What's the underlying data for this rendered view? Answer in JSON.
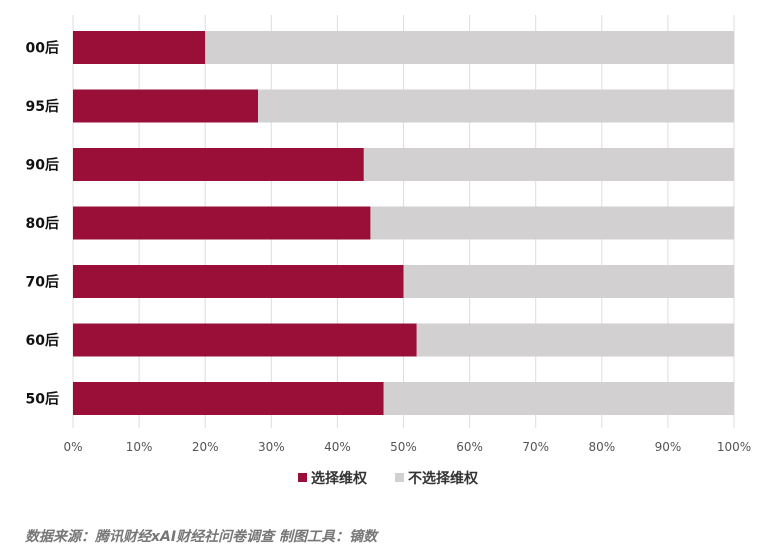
{
  "chart_data": {
    "type": "bar",
    "orientation": "horizontal",
    "stacked": true,
    "categories": [
      "00后",
      "95后",
      "90后",
      "80后",
      "70后",
      "60后",
      "50后"
    ],
    "series": [
      {
        "name": "选择维权",
        "values": [
          20,
          28,
          44,
          45,
          50,
          52,
          47
        ],
        "color": "#990f37"
      },
      {
        "name": "不选择维权",
        "values": [
          80,
          72,
          56,
          55,
          50,
          48,
          53
        ],
        "color": "#d2d0d1"
      }
    ],
    "xlim": [
      0,
      100
    ],
    "x_ticks": [
      "0%",
      "10%",
      "20%",
      "30%",
      "40%",
      "50%",
      "60%",
      "70%",
      "80%",
      "90%",
      "100%"
    ],
    "grid": true,
    "legend_placement": "bottom"
  },
  "source_text": "数据来源：腾讯财经xAI财经社问卷调查  制图工具：镝数"
}
